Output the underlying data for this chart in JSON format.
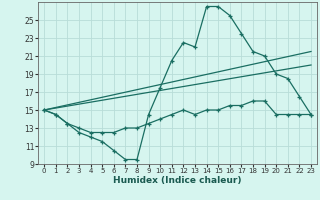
{
  "xlabel": "Humidex (Indice chaleur)",
  "background_color": "#d6f5ef",
  "grid_color": "#b8ddd8",
  "line_color": "#1a6e62",
  "xlim": [
    -0.5,
    23.5
  ],
  "ylim": [
    9,
    27
  ],
  "xticks": [
    0,
    1,
    2,
    3,
    4,
    5,
    6,
    7,
    8,
    9,
    10,
    11,
    12,
    13,
    14,
    15,
    16,
    17,
    18,
    19,
    20,
    21,
    22,
    23
  ],
  "yticks": [
    9,
    11,
    13,
    15,
    17,
    19,
    21,
    23,
    25
  ],
  "series1_x": [
    0,
    1,
    2,
    3,
    4,
    5,
    6,
    7,
    8,
    9,
    10,
    11,
    12,
    13,
    14,
    15,
    16,
    17,
    18,
    19,
    20,
    21,
    22,
    23
  ],
  "series1_y": [
    15,
    14.5,
    13.5,
    12.5,
    12,
    11.5,
    10.5,
    9.5,
    9.5,
    14.5,
    17.5,
    20.5,
    22.5,
    22,
    26.5,
    26.5,
    25.5,
    23.5,
    21.5,
    21,
    19,
    18.5,
    16.5,
    14.5
  ],
  "series2_x": [
    0,
    1,
    2,
    3,
    4,
    5,
    6,
    7,
    8,
    9,
    10,
    11,
    12,
    13,
    14,
    15,
    16,
    17,
    18,
    19,
    20,
    21,
    22,
    23
  ],
  "series2_y": [
    15,
    14.5,
    13.5,
    13,
    12.5,
    12.5,
    12.5,
    13,
    13,
    13.5,
    14,
    14.5,
    15,
    14.5,
    15,
    15,
    15.5,
    15.5,
    16,
    16,
    14.5,
    14.5,
    14.5,
    14.5
  ],
  "series3_x": [
    0,
    23
  ],
  "series3_y": [
    15,
    21.5
  ],
  "series4_x": [
    0,
    23
  ],
  "series4_y": [
    15,
    20
  ]
}
